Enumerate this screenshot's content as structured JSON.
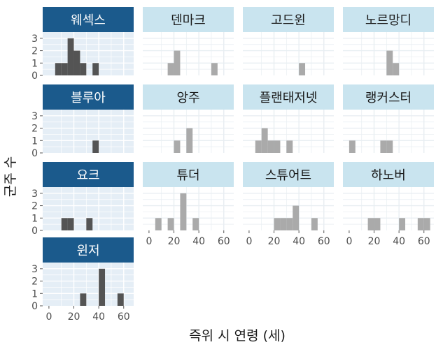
{
  "chart_data": {
    "type": "bar",
    "subtype": "faceted histogram",
    "xlabel": "즉위 시 연령 (세)",
    "ylabel": "군주 수",
    "xlim": [
      -5,
      68
    ],
    "ylim": [
      0,
      3.5
    ],
    "xticks": [
      0,
      20,
      40,
      60
    ],
    "yticks": [
      0,
      1,
      2,
      3
    ],
    "bin_width": 5,
    "grid": true,
    "colors": {
      "highlight_strip": "#1b5a8c",
      "highlight_strip_text": "#ffffff",
      "highlight_bar": "#545454",
      "other_strip": "#c9e4ef",
      "other_strip_text": "#1a1a1a",
      "other_bar": "#aaaaaa",
      "highlight_panel_bg": "#e5eef6",
      "grid": "#ffffff"
    },
    "facets": [
      {
        "name": "웨섹스",
        "highlight": true,
        "bins": [
          [
            5,
            1
          ],
          [
            10,
            1
          ],
          [
            15,
            3
          ],
          [
            20,
            2
          ],
          [
            25,
            1
          ],
          [
            35,
            1
          ]
        ]
      },
      {
        "name": "덴마크",
        "highlight": false,
        "bins": [
          [
            15,
            1
          ],
          [
            20,
            2
          ],
          [
            50,
            1
          ]
        ]
      },
      {
        "name": "고드윈",
        "highlight": false,
        "bins": [
          [
            40,
            1
          ]
        ]
      },
      {
        "name": "노르망디",
        "highlight": false,
        "bins": [
          [
            30,
            2
          ],
          [
            35,
            1
          ]
        ]
      },
      {
        "name": "블루아",
        "highlight": true,
        "bins": [
          [
            35,
            1
          ]
        ]
      },
      {
        "name": "앙주",
        "highlight": false,
        "bins": [
          [
            20,
            1
          ],
          [
            30,
            2
          ]
        ]
      },
      {
        "name": "플랜태저넷",
        "highlight": false,
        "bins": [
          [
            5,
            1
          ],
          [
            10,
            2
          ],
          [
            15,
            1
          ],
          [
            20,
            1
          ],
          [
            30,
            1
          ]
        ]
      },
      {
        "name": "랭커스터",
        "highlight": false,
        "bins": [
          [
            0,
            1
          ],
          [
            25,
            1
          ],
          [
            30,
            1
          ]
        ]
      },
      {
        "name": "요크",
        "highlight": true,
        "bins": [
          [
            10,
            1
          ],
          [
            15,
            1
          ],
          [
            30,
            1
          ]
        ]
      },
      {
        "name": "튜더",
        "highlight": false,
        "bins": [
          [
            5,
            1
          ],
          [
            15,
            1
          ],
          [
            25,
            3
          ],
          [
            35,
            1
          ]
        ]
      },
      {
        "name": "스튜어트",
        "highlight": false,
        "bins": [
          [
            20,
            1
          ],
          [
            25,
            1
          ],
          [
            30,
            1
          ],
          [
            35,
            2
          ],
          [
            50,
            1
          ]
        ]
      },
      {
        "name": "하노버",
        "highlight": false,
        "bins": [
          [
            15,
            1
          ],
          [
            20,
            1
          ],
          [
            40,
            1
          ],
          [
            55,
            1
          ],
          [
            60,
            1
          ]
        ]
      },
      {
        "name": "윈저",
        "highlight": true,
        "bins": [
          [
            25,
            1
          ],
          [
            40,
            3
          ],
          [
            55,
            1
          ]
        ]
      }
    ]
  }
}
